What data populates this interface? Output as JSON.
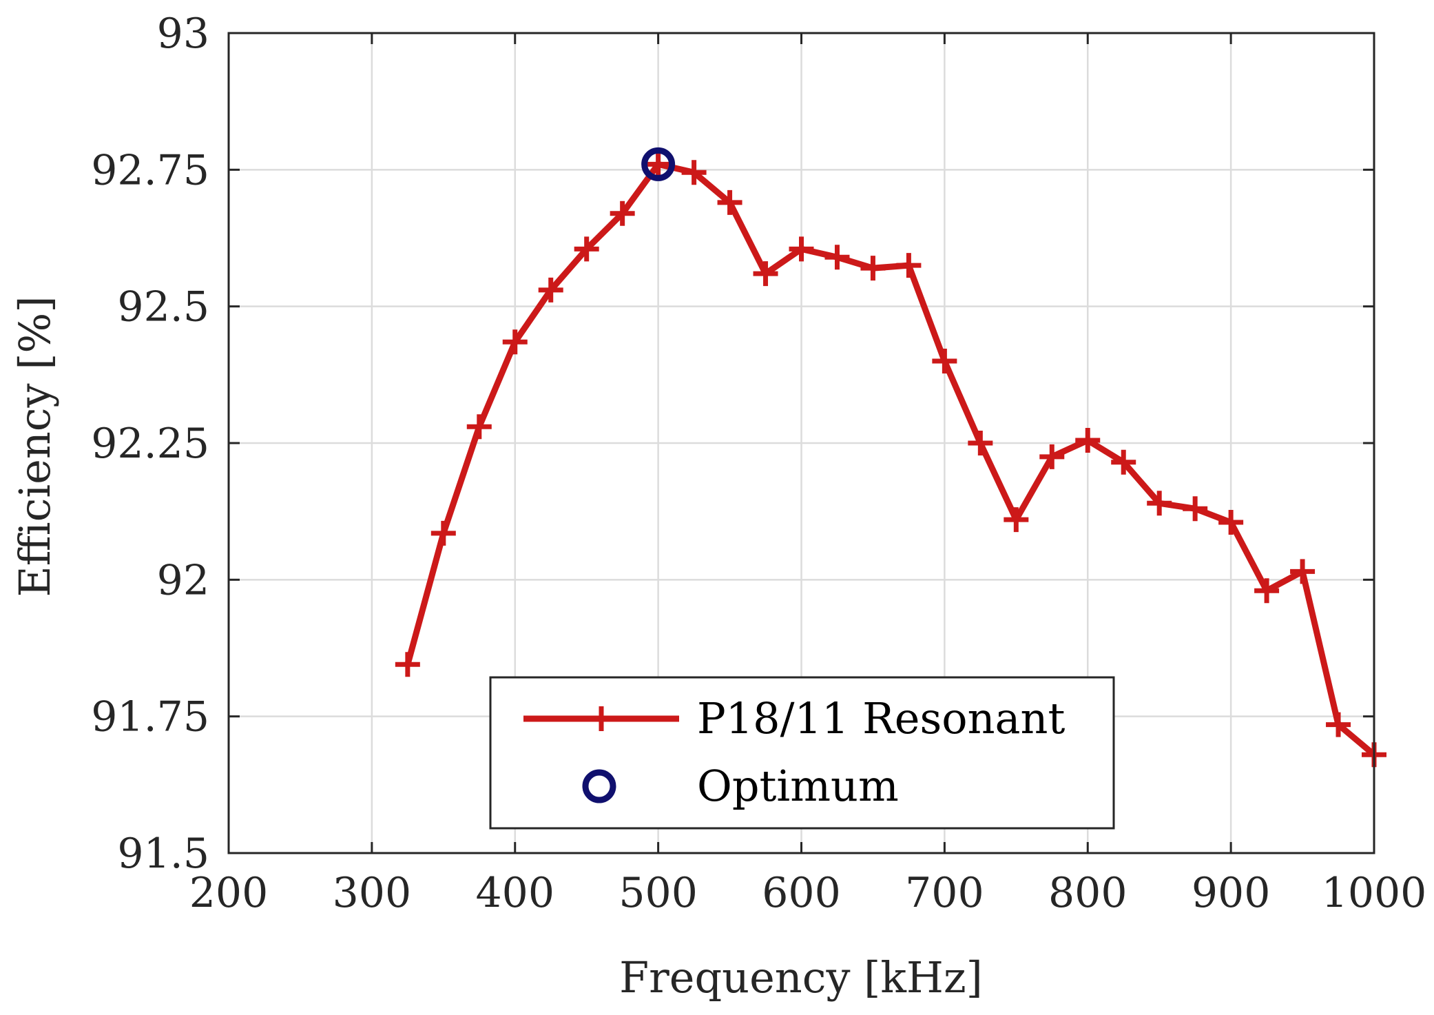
{
  "chart_data": {
    "type": "line",
    "title": "",
    "xlabel": "Frequency [kHz]",
    "ylabel": "Efficiency [%]",
    "xlim": [
      200,
      1000
    ],
    "ylim": [
      91.5,
      93
    ],
    "grid": true,
    "xticks": [
      200,
      300,
      400,
      500,
      600,
      700,
      800,
      900,
      1000
    ],
    "xtick_labels": [
      "200",
      "300",
      "400",
      "500",
      "600",
      "700",
      "800",
      "900",
      "1000"
    ],
    "yticks": [
      91.5,
      91.75,
      92,
      92.25,
      92.5,
      92.75,
      93
    ],
    "ytick_labels": [
      "91.5",
      "91.75",
      "92",
      "92.25",
      "92.5",
      "92.75",
      "93"
    ],
    "legend_position": "bottom-center",
    "series": [
      {
        "name": "P18/11 Resonant",
        "color": "#cc1919",
        "marker": "plus",
        "x": [
          325,
          350,
          375,
          400,
          425,
          450,
          475,
          500,
          525,
          550,
          575,
          600,
          625,
          650,
          675,
          700,
          725,
          750,
          775,
          800,
          825,
          850,
          875,
          900,
          925,
          950,
          975,
          1000
        ],
        "y": [
          91.845,
          92.085,
          92.28,
          92.435,
          92.53,
          92.605,
          92.67,
          92.76,
          92.745,
          92.69,
          92.56,
          92.605,
          92.59,
          92.57,
          92.575,
          92.4,
          92.25,
          92.11,
          92.225,
          92.255,
          92.215,
          92.14,
          92.13,
          92.105,
          91.98,
          92.015,
          91.735,
          91.68
        ]
      },
      {
        "name": "Optimum",
        "color": "#10106e",
        "marker": "circle",
        "x": [
          500
        ],
        "y": [
          92.76
        ]
      }
    ]
  }
}
